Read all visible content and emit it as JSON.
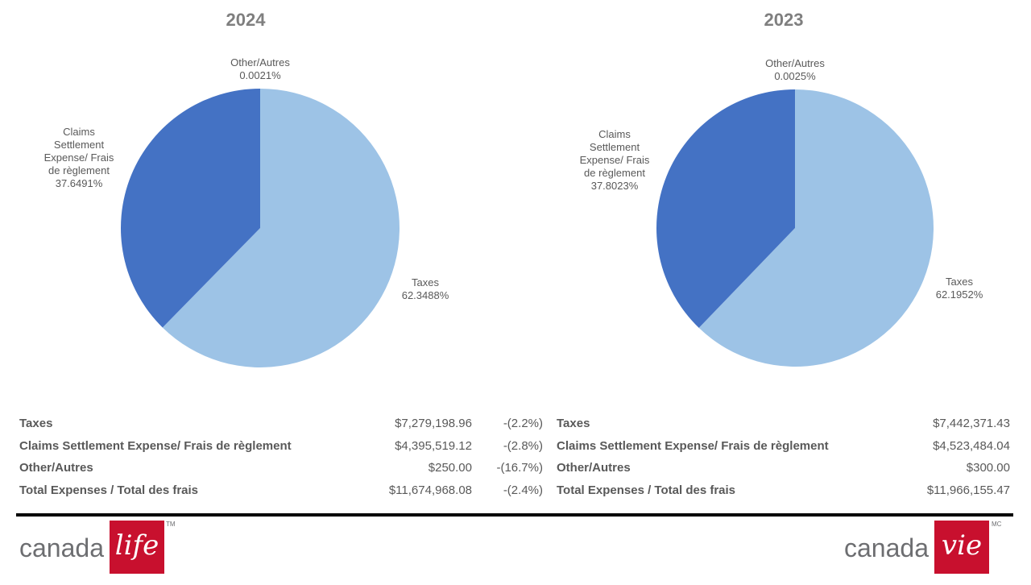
{
  "chart_data": [
    {
      "type": "pie",
      "title": "2024",
      "slices": [
        {
          "label": "Other/Autres",
          "label_lines": [
            "Other/Autres"
          ],
          "value": 0.0021,
          "value_text": "0.0021%"
        },
        {
          "label": "Taxes",
          "label_lines": [
            "Taxes"
          ],
          "value": 62.3488,
          "value_text": "62.3488%"
        },
        {
          "label": "Claims Settlement Expense/ Frais de règlement",
          "label_lines": [
            "Claims",
            "Settlement",
            "Expense/ Frais",
            "de règlement"
          ],
          "value": 37.6491,
          "value_text": "37.6491%"
        }
      ]
    },
    {
      "type": "pie",
      "title": "2023",
      "slices": [
        {
          "label": "Other/Autres",
          "label_lines": [
            "Other/Autres"
          ],
          "value": 0.0025,
          "value_text": "0.0025%"
        },
        {
          "label": "Taxes",
          "label_lines": [
            "Taxes"
          ],
          "value": 62.1952,
          "value_text": "62.1952%"
        },
        {
          "label": "Claims Settlement Expense/ Frais de règlement",
          "label_lines": [
            "Claims",
            "Settlement",
            "Expense/ Frais",
            "de règlement"
          ],
          "value": 37.8023,
          "value_text": "37.8023%"
        }
      ]
    }
  ],
  "colors": {
    "taxes": "#9dc3e6",
    "claims": "#4472c4",
    "other": "#a5a5a5",
    "label": "#595959",
    "brand_red": "#c8102e"
  },
  "summary_2024": {
    "rows": [
      {
        "name": "Taxes",
        "amount": "$7,279,198.96",
        "change": "-(2.2%)"
      },
      {
        "name": "Claims Settlement Expense/ Frais de règlement",
        "amount": "$4,395,519.12",
        "change": "-(2.8%)"
      },
      {
        "name": "Other/Autres",
        "amount": "$250.00",
        "change": "-(16.7%)"
      },
      {
        "name": "Total Expenses / Total des frais",
        "amount": "$11,674,968.08",
        "change": "-(2.4%)"
      }
    ]
  },
  "summary_2023": {
    "rows": [
      {
        "name": "Taxes",
        "amount": "$7,442,371.43"
      },
      {
        "name": "Claims Settlement Expense/ Frais de règlement",
        "amount": "$4,523,484.04"
      },
      {
        "name": "Other/Autres",
        "amount": "$300.00"
      },
      {
        "name": "Total Expenses / Total des frais",
        "amount": "$11,966,155.47"
      }
    ]
  },
  "footer": {
    "logo_en": {
      "word": "canada",
      "script": "life",
      "mark": "TM"
    },
    "logo_fr": {
      "word": "canada",
      "script": "vie",
      "mark": "MC"
    }
  }
}
